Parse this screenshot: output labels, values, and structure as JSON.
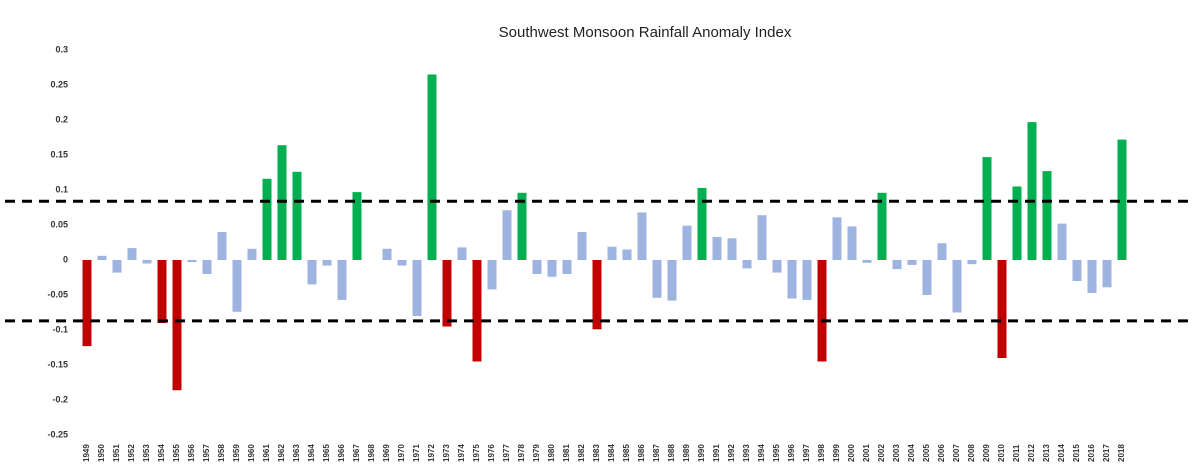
{
  "chart_data": {
    "type": "bar",
    "title": "Southwest Monsoon Rainfall Anomaly Index",
    "categories": [
      "1949",
      "1950",
      "1951",
      "1952",
      "1953",
      "1954",
      "1955",
      "1956",
      "1957",
      "1958",
      "1959",
      "1960",
      "1961",
      "1962",
      "1963",
      "1964",
      "1965",
      "1966",
      "1967",
      "1968",
      "1969",
      "1970",
      "1971",
      "1972",
      "1973",
      "1974",
      "1975",
      "1976",
      "1977",
      "1978",
      "1979",
      "1980",
      "1981",
      "1982",
      "1983",
      "1984",
      "1985",
      "1986",
      "1987",
      "1988",
      "1989",
      "1990",
      "1991",
      "1992",
      "1993",
      "1994",
      "1995",
      "1996",
      "1997",
      "1998",
      "1999",
      "2000",
      "2001",
      "2002",
      "2003",
      "2004",
      "2005",
      "2006",
      "2007",
      "2008",
      "2009",
      "2010",
      "2011",
      "2012",
      "2013",
      "2014",
      "2015",
      "2016",
      "2017",
      "2018"
    ],
    "values": [
      -0.123,
      0.006,
      -0.018,
      0.017,
      -0.005,
      -0.09,
      -0.186,
      -0.003,
      -0.02,
      0.04,
      -0.074,
      0.016,
      0.116,
      0.164,
      0.126,
      -0.035,
      -0.008,
      -0.057,
      0.097,
      0,
      0.016,
      -0.008,
      -0.08,
      0.265,
      -0.095,
      0.018,
      -0.145,
      -0.042,
      0.071,
      0.096,
      -0.02,
      -0.024,
      -0.02,
      0.04,
      -0.099,
      0.019,
      0.015,
      0.068,
      -0.054,
      -0.058,
      0.049,
      0.103,
      0.033,
      0.031,
      -0.012,
      0.064,
      -0.018,
      -0.055,
      -0.057,
      -0.145,
      0.061,
      0.048,
      -0.004,
      0.096,
      -0.013,
      -0.007,
      -0.05,
      0.024,
      -0.075,
      -0.006,
      0.147,
      -0.14,
      0.105,
      0.197,
      0.127,
      0.052,
      -0.03,
      -0.047,
      -0.039,
      0.172
    ],
    "colors": [
      "#c00000",
      "#9db3e0",
      "#9db3e0",
      "#9db3e0",
      "#9db3e0",
      "#c00000",
      "#c00000",
      "#9db3e0",
      "#9db3e0",
      "#9db3e0",
      "#9db3e0",
      "#9db3e0",
      "#00b050",
      "#00b050",
      "#00b050",
      "#9db3e0",
      "#9db3e0",
      "#9db3e0",
      "#00b050",
      "#9db3e0",
      "#9db3e0",
      "#9db3e0",
      "#9db3e0",
      "#00b050",
      "#c00000",
      "#9db3e0",
      "#c00000",
      "#9db3e0",
      "#9db3e0",
      "#00b050",
      "#9db3e0",
      "#9db3e0",
      "#9db3e0",
      "#9db3e0",
      "#c00000",
      "#9db3e0",
      "#9db3e0",
      "#9db3e0",
      "#9db3e0",
      "#9db3e0",
      "#9db3e0",
      "#00b050",
      "#9db3e0",
      "#9db3e0",
      "#9db3e0",
      "#9db3e0",
      "#9db3e0",
      "#9db3e0",
      "#9db3e0",
      "#c00000",
      "#9db3e0",
      "#9db3e0",
      "#9db3e0",
      "#00b050",
      "#9db3e0",
      "#9db3e0",
      "#9db3e0",
      "#9db3e0",
      "#9db3e0",
      "#9db3e0",
      "#00b050",
      "#c00000",
      "#00b050",
      "#00b050",
      "#00b050",
      "#9db3e0",
      "#9db3e0",
      "#9db3e0",
      "#9db3e0",
      "#00b050"
    ],
    "thresholds": [
      0.084,
      -0.087
    ],
    "ylim": [
      -0.25,
      0.3
    ],
    "yticks": [
      0.3,
      0.25,
      0.2,
      0.15,
      0.1,
      0.05,
      0,
      -0.05,
      -0.1,
      -0.15,
      -0.2,
      -0.25
    ],
    "grid": false
  }
}
